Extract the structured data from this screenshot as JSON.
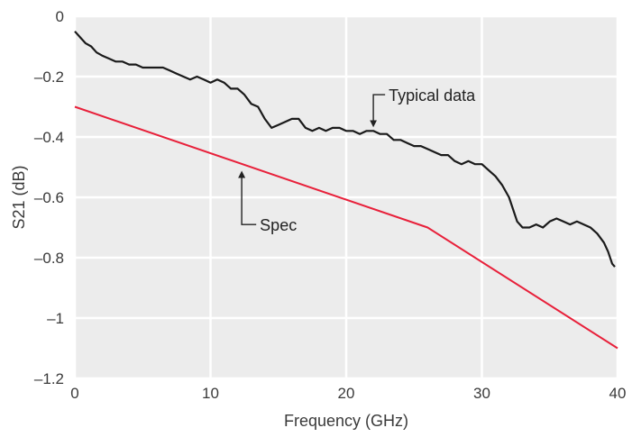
{
  "chart_data": {
    "type": "line",
    "xlabel": "Frequency (GHz)",
    "ylabel": "S21 (dB)",
    "xlim": [
      0,
      40
    ],
    "ylim": [
      -1.2,
      0
    ],
    "xticks": [
      0,
      10,
      20,
      30,
      40
    ],
    "xtick_labels": [
      "0",
      "10",
      "20",
      "30",
      "40"
    ],
    "yticks": [
      0,
      -0.2,
      -0.4,
      -0.6,
      -0.8,
      -1,
      -1.2
    ],
    "ytick_labels": [
      "0",
      "–0.2",
      "–0.4",
      "–0.6",
      "–0.8",
      "–1",
      "–1.2"
    ],
    "grid": true,
    "colors": {
      "plot_bg": "#ececec",
      "grid": "#ffffff",
      "typical": "#1a1a1a",
      "spec": "#e8203a"
    },
    "series": [
      {
        "key": "typical",
        "x": [
          0,
          0.4,
          0.8,
          1.2,
          1.6,
          2.0,
          2.5,
          3.0,
          3.5,
          4.0,
          4.5,
          5.0,
          5.5,
          6.0,
          6.5,
          7.0,
          7.5,
          8.0,
          8.5,
          9.0,
          9.5,
          10.0,
          10.5,
          11.0,
          11.5,
          12.0,
          12.5,
          13.0,
          13.5,
          14.0,
          14.5,
          15.0,
          15.5,
          16.0,
          16.5,
          17.0,
          17.5,
          18.0,
          18.5,
          19.0,
          19.5,
          20.0,
          20.5,
          21.0,
          21.5,
          22.0,
          22.5,
          23.0,
          23.5,
          24.0,
          24.5,
          25.0,
          25.5,
          26.0,
          26.5,
          27.0,
          27.5,
          28.0,
          28.5,
          29.0,
          29.5,
          30.0,
          30.5,
          31.0,
          31.5,
          32.0,
          32.3,
          32.6,
          33.0,
          33.5,
          34.0,
          34.5,
          35.0,
          35.5,
          36.0,
          36.5,
          37.0,
          37.5,
          38.0,
          38.5,
          39.0,
          39.3,
          39.6,
          39.8
        ],
        "y": [
          -0.05,
          -0.07,
          -0.09,
          -0.1,
          -0.12,
          -0.13,
          -0.14,
          -0.15,
          -0.15,
          -0.16,
          -0.16,
          -0.17,
          -0.17,
          -0.17,
          -0.17,
          -0.18,
          -0.19,
          -0.2,
          -0.21,
          -0.2,
          -0.21,
          -0.22,
          -0.21,
          -0.22,
          -0.24,
          -0.24,
          -0.26,
          -0.29,
          -0.3,
          -0.34,
          -0.37,
          -0.36,
          -0.35,
          -0.34,
          -0.34,
          -0.37,
          -0.38,
          -0.37,
          -0.38,
          -0.37,
          -0.37,
          -0.38,
          -0.38,
          -0.39,
          -0.38,
          -0.38,
          -0.39,
          -0.39,
          -0.41,
          -0.41,
          -0.42,
          -0.43,
          -0.43,
          -0.44,
          -0.45,
          -0.46,
          -0.46,
          -0.48,
          -0.49,
          -0.48,
          -0.49,
          -0.49,
          -0.51,
          -0.53,
          -0.56,
          -0.6,
          -0.64,
          -0.68,
          -0.7,
          -0.7,
          -0.69,
          -0.7,
          -0.68,
          -0.67,
          -0.68,
          -0.69,
          -0.68,
          -0.69,
          -0.7,
          -0.72,
          -0.75,
          -0.78,
          -0.82,
          -0.83
        ]
      },
      {
        "key": "spec",
        "x": [
          0,
          26,
          40
        ],
        "y": [
          -0.3,
          -0.7,
          -1.1
        ]
      }
    ],
    "annotations": [
      {
        "key": "typical_label",
        "text": "Typical data",
        "arrow_to": [
          22,
          -0.38
        ],
        "label_at": [
          23,
          -0.26
        ]
      },
      {
        "key": "spec_label",
        "text": "Spec",
        "arrow_to": [
          12.3,
          -0.5
        ],
        "label_at": [
          13.5,
          -0.69
        ]
      }
    ]
  }
}
